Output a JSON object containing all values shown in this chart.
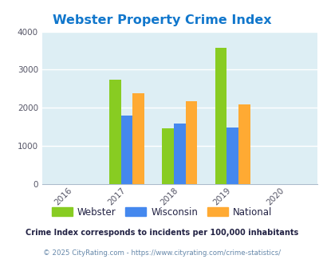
{
  "title": "Webster Property Crime Index",
  "years": [
    2016,
    2017,
    2018,
    2019,
    2020
  ],
  "bar_years": [
    2017,
    2018,
    2019
  ],
  "webster": [
    2730,
    1460,
    3570
  ],
  "wisconsin": [
    1800,
    1580,
    1480
  ],
  "national": [
    2380,
    2180,
    2100
  ],
  "bar_width": 0.22,
  "colors": {
    "webster": "#88cc22",
    "wisconsin": "#4488ee",
    "national": "#ffaa33"
  },
  "bg_color": "#ddeef4",
  "ylim": [
    0,
    4000
  ],
  "yticks": [
    0,
    1000,
    2000,
    3000,
    4000
  ],
  "xlim": [
    2015.4,
    2020.6
  ],
  "title_color": "#1177cc",
  "title_fontsize": 11.5,
  "legend_labels": [
    "Webster",
    "Wisconsin",
    "National"
  ],
  "footnote1": "Crime Index corresponds to incidents per 100,000 inhabitants",
  "footnote2": "© 2025 CityRating.com - https://www.cityrating.com/crime-statistics/",
  "footnote_color1": "#222244",
  "footnote_color2": "#6688aa"
}
